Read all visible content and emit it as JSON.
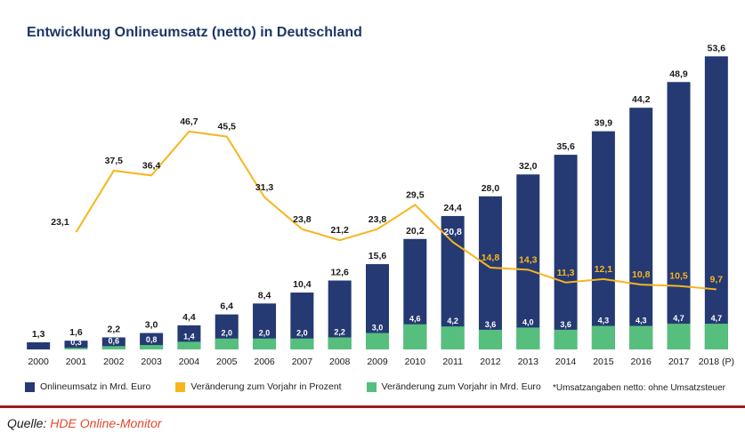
{
  "title": "Entwicklung Onlineumsatz (netto) in Deutschland",
  "chart_data": {
    "type": "bar",
    "subtype": "bar+line combo",
    "categories": [
      "2000",
      "2001",
      "2002",
      "2003",
      "2004",
      "2005",
      "2006",
      "2007",
      "2008",
      "2009",
      "2010",
      "2011",
      "2012",
      "2013",
      "2014",
      "2015",
      "2016",
      "2017",
      "2018 (P)"
    ],
    "series": [
      {
        "name": "Onlineumsatz in Mrd. Euro",
        "type": "bar",
        "color": "#253a73",
        "values": [
          1.3,
          1.6,
          2.2,
          3.0,
          4.4,
          6.4,
          8.4,
          10.4,
          12.6,
          15.6,
          20.2,
          24.4,
          28.0,
          32.0,
          35.6,
          39.9,
          44.2,
          48.9,
          53.6
        ]
      },
      {
        "name": "Veränderung zum Vorjahr in Prozent",
        "type": "line",
        "color": "#f8b51d",
        "values": [
          null,
          23.1,
          37.5,
          36.4,
          46.7,
          45.5,
          31.3,
          23.8,
          21.2,
          23.8,
          29.5,
          20.8,
          14.8,
          14.3,
          11.3,
          12.1,
          10.8,
          10.5,
          9.7
        ],
        "label_colors": [
          null,
          "#1a1a1a",
          "#1a1a1a",
          "#1a1a1a",
          "#1a1a1a",
          "#1a1a1a",
          "#1a1a1a",
          "#1a1a1a",
          "#1a1a1a",
          "#1a1a1a",
          "#1a1a1a",
          "#ffffff",
          "#f8b51d",
          "#f8b51d",
          "#f8b51d",
          "#f8b51d",
          "#f8b51d",
          "#f8b51d",
          "#f8b51d"
        ]
      },
      {
        "name": "Veränderung zum Vorjahr in Mrd. Euro",
        "type": "bar",
        "color": "#57bf7e",
        "label_color": "#ffffff",
        "values": [
          null,
          0.3,
          0.6,
          0.8,
          1.4,
          2.0,
          2.0,
          2.0,
          2.2,
          3.0,
          4.6,
          4.2,
          3.6,
          4.0,
          3.6,
          4.3,
          4.3,
          4.7,
          4.7
        ]
      }
    ],
    "ylim": [
      0,
      55
    ],
    "percent_axis_range": [
      0,
      50
    ],
    "grid": false,
    "legend_position": "bottom"
  },
  "footnote": "*Umsatzangaben netto: ohne Umsatzsteuer",
  "source": {
    "prefix": "Quelle:",
    "link_text": "HDE Online-Monitor"
  },
  "colors": {
    "navy": "#253a73",
    "yellow": "#f8b51d",
    "green": "#57bf7e",
    "rule_red": "#9b1b1e",
    "link_red": "#e2492f",
    "title_navy": "#1c3667"
  }
}
